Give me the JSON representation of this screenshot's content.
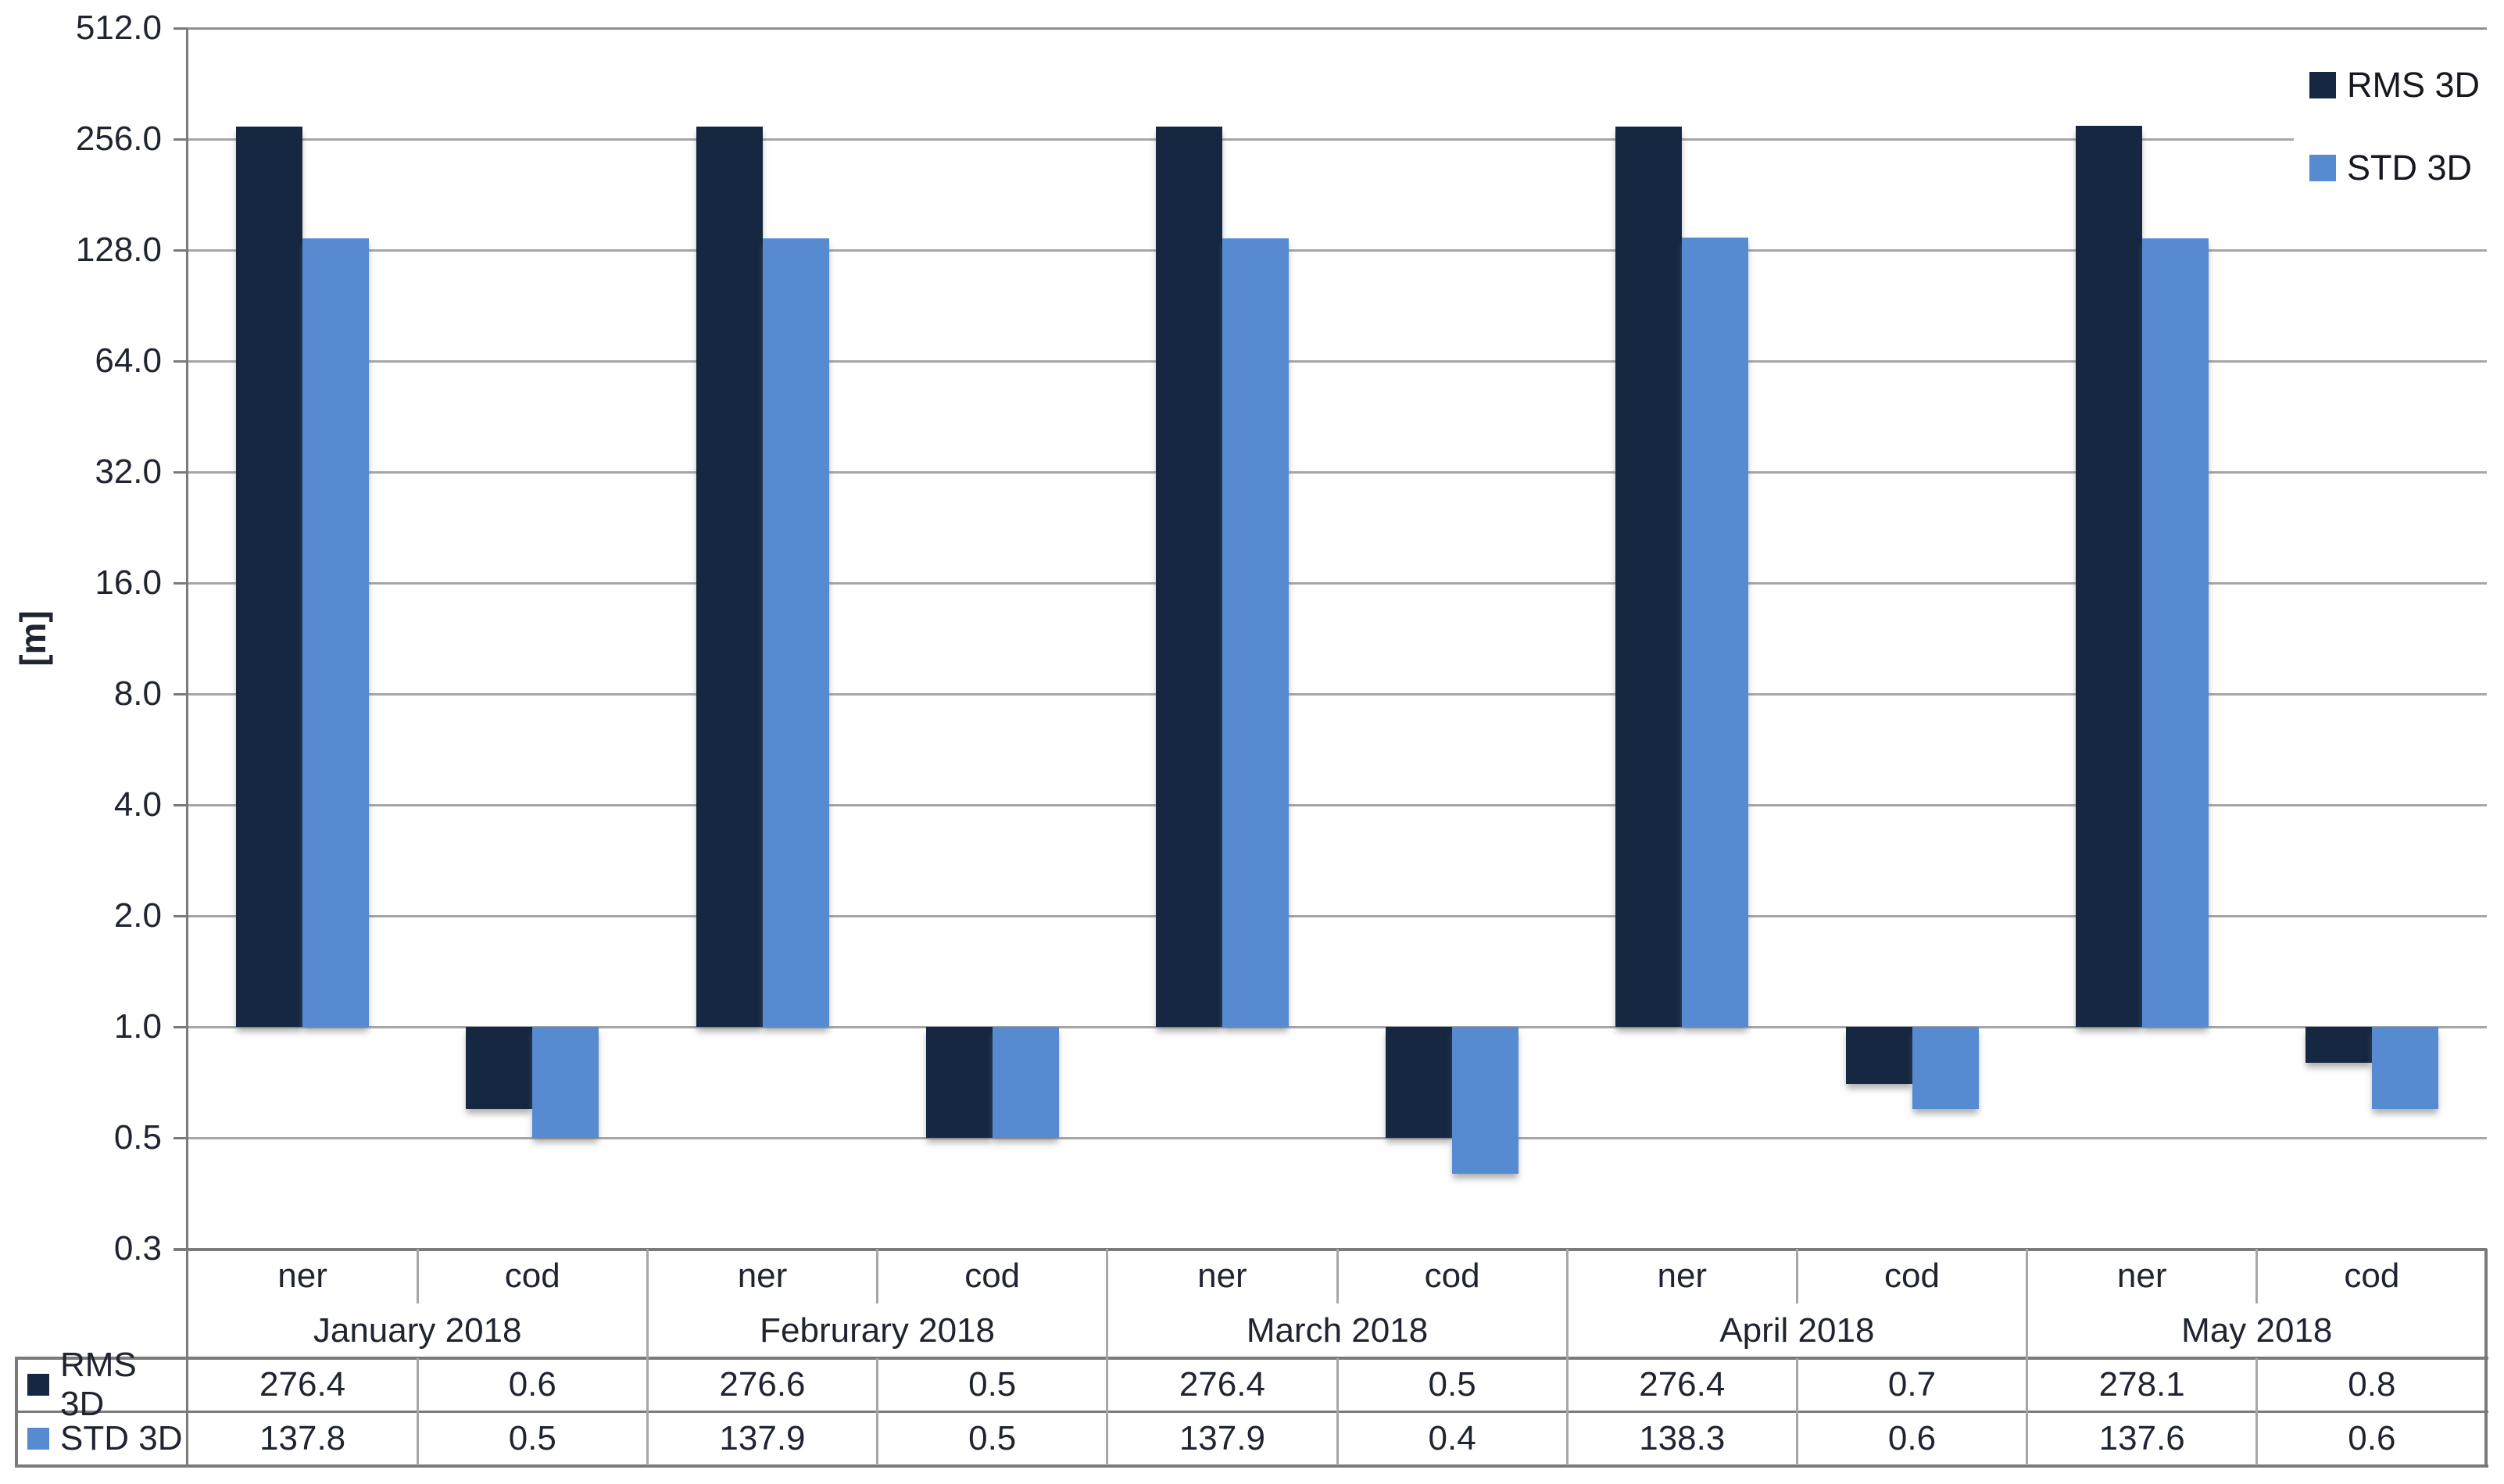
{
  "chart_data": {
    "type": "bar",
    "title": "",
    "ylabel": "[m]",
    "y_axis": {
      "scale": "log2",
      "min": 0.25,
      "max": 512,
      "baseline": 1,
      "ticks": [
        {
          "value": 512,
          "label": "512.0"
        },
        {
          "value": 256,
          "label": "256.0"
        },
        {
          "value": 128,
          "label": "128.0"
        },
        {
          "value": 64,
          "label": "64.0"
        },
        {
          "value": 32,
          "label": "32.0"
        },
        {
          "value": 16,
          "label": "16.0"
        },
        {
          "value": 8,
          "label": "8.0"
        },
        {
          "value": 4,
          "label": "4.0"
        },
        {
          "value": 2,
          "label": "2.0"
        },
        {
          "value": 1,
          "label": "1.0"
        },
        {
          "value": 0.5,
          "label": "0.5"
        },
        {
          "value": 0.25,
          "label": "0.3"
        }
      ]
    },
    "months": [
      "January 2018",
      "Februrary 2018",
      "March 2018",
      "April 2018",
      "May 2018"
    ],
    "stations": [
      "ner",
      "cod"
    ],
    "series": [
      {
        "name": "RMS 3D",
        "color": "#152741",
        "values": [
          276.4,
          0.6,
          276.6,
          0.5,
          276.4,
          0.5,
          276.4,
          0.7,
          278.1,
          0.8
        ]
      },
      {
        "name": "STD 3D",
        "color": "#568BD2",
        "values": [
          137.8,
          0.5,
          137.9,
          0.5,
          137.9,
          0.4,
          138.3,
          0.6,
          137.6,
          0.6
        ]
      }
    ],
    "legend": {
      "position": "top-right",
      "items": [
        "RMS 3D",
        "STD 3D"
      ]
    },
    "grid": true,
    "value_decimals": 1
  },
  "colors": {
    "background": "#FFFFFF",
    "gridline": "#A6A6A6",
    "plot_border": "#8F8F8F",
    "axis_line": "#7A7A7A",
    "text": "#1F2430"
  }
}
